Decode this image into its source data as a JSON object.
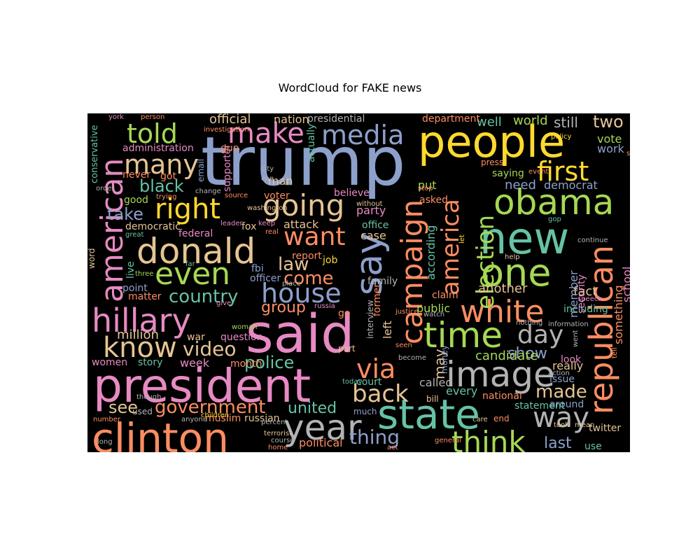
{
  "title": "WordCloud for FAKE news",
  "palette": {
    "pink": "#e78ac3",
    "blue": "#8da0cb",
    "orange": "#fc8d62",
    "teal": "#66c2a5",
    "green": "#a6d854",
    "yellow": "#ffd92f",
    "tan": "#e5c494",
    "gray": "#b3b3b3"
  },
  "words": [
    "trump",
    "said",
    "president",
    "people",
    "clinton",
    "state",
    "new",
    "donald",
    "american",
    "republican",
    "hillary",
    "one",
    "obama",
    "time",
    "white",
    "image",
    "year",
    "say",
    "campaign",
    "make",
    "media",
    "told",
    "even",
    "house",
    "know",
    "right",
    "going",
    "think",
    "election",
    "america",
    "first",
    "many",
    "want",
    "via",
    "way",
    "back",
    "video",
    "government",
    "country",
    "law",
    "group",
    "police",
    "day",
    "made",
    "black",
    "see",
    "take",
    "come",
    "thing",
    "united",
    "political",
    "last",
    "week",
    "million",
    "may",
    "show",
    "well",
    "world",
    "two",
    "still",
    "official",
    "nation",
    "presidential",
    "department",
    "vote",
    "work",
    "democrat",
    "need",
    "put",
    "saying",
    "asked",
    "administration",
    "conservative",
    "good",
    "got",
    "never",
    "supporter",
    "actually",
    "gun",
    "email",
    "voter",
    "man",
    "city",
    "cnn",
    "believe",
    "party",
    "attack",
    "democratic",
    "federal",
    "fox",
    "office",
    "case",
    "report",
    "job",
    "fbi",
    "officer",
    "point",
    "live",
    "matter",
    "according",
    "another",
    "fact",
    "claim",
    "public",
    "member",
    "including",
    "security",
    "school",
    "support",
    "something",
    "candidate",
    "really",
    "every",
    "national",
    "issue",
    "around",
    "statement",
    "go",
    "left",
    "former",
    "family",
    "russia",
    "interview",
    "part",
    "month",
    "story",
    "women",
    "question",
    "war",
    "court",
    "called",
    "bill",
    "money",
    "look",
    "muslim",
    "russian",
    "much",
    "used",
    "use",
    "twitter",
    "took",
    "mean",
    "care",
    "end",
    "terrorist",
    "percent",
    "course",
    "home",
    "general",
    "act",
    "children",
    "anyone",
    "long",
    "number",
    "though",
    "york",
    "person",
    "investigation",
    "trying",
    "change",
    "order",
    "great",
    "word",
    "washington",
    "keep",
    "leader",
    "real",
    "place",
    "far",
    "three",
    "give",
    "woman",
    "seen",
    "become",
    "today",
    "let",
    "already",
    "student",
    "policy",
    "press",
    "event",
    "help",
    "gop",
    "continue",
    "speech",
    "tell",
    "went",
    "information",
    "nothing",
    "watch",
    "justice",
    "stop",
    "without",
    "source",
    "action",
    "john",
    "mr"
  ]
}
